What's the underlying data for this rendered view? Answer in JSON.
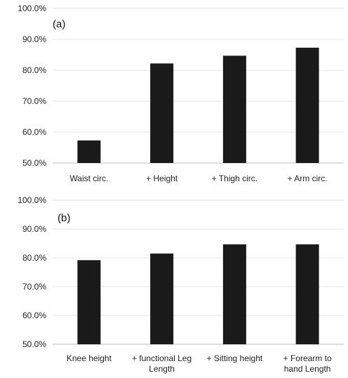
{
  "chart_data": [
    {
      "type": "bar",
      "panel_label": "(a)",
      "categories": [
        [
          "Waist circ."
        ],
        [
          "+ Height"
        ],
        [
          "+ Thigh circ."
        ],
        [
          "+ Arm circ."
        ]
      ],
      "values": [
        57.3,
        82.2,
        84.7,
        87.3
      ],
      "ylim": [
        50,
        100
      ],
      "yticks": [
        50,
        60,
        70,
        80,
        90,
        100
      ],
      "ytick_labels": [
        "50.0%",
        "60.0%",
        "70.0%",
        "80.0%",
        "90.0%",
        "100.0%"
      ],
      "grid": true,
      "bar_color": "#1a1a1a"
    },
    {
      "type": "bar",
      "panel_label": "(b)",
      "categories": [
        [
          "Knee height"
        ],
        [
          "+ functional Leg",
          "Length"
        ],
        [
          "+ Sitting height"
        ],
        [
          "+ Forearm to",
          "hand  Length"
        ]
      ],
      "values": [
        79.2,
        81.5,
        84.7,
        84.7
      ],
      "ylim": [
        50,
        100
      ],
      "yticks": [
        50,
        60,
        70,
        80,
        90,
        100
      ],
      "ytick_labels": [
        "50.0%",
        "60.0%",
        "70.0%",
        "80.0%",
        "90.0%",
        "100.0%"
      ],
      "grid": true,
      "bar_color": "#1a1a1a"
    }
  ]
}
